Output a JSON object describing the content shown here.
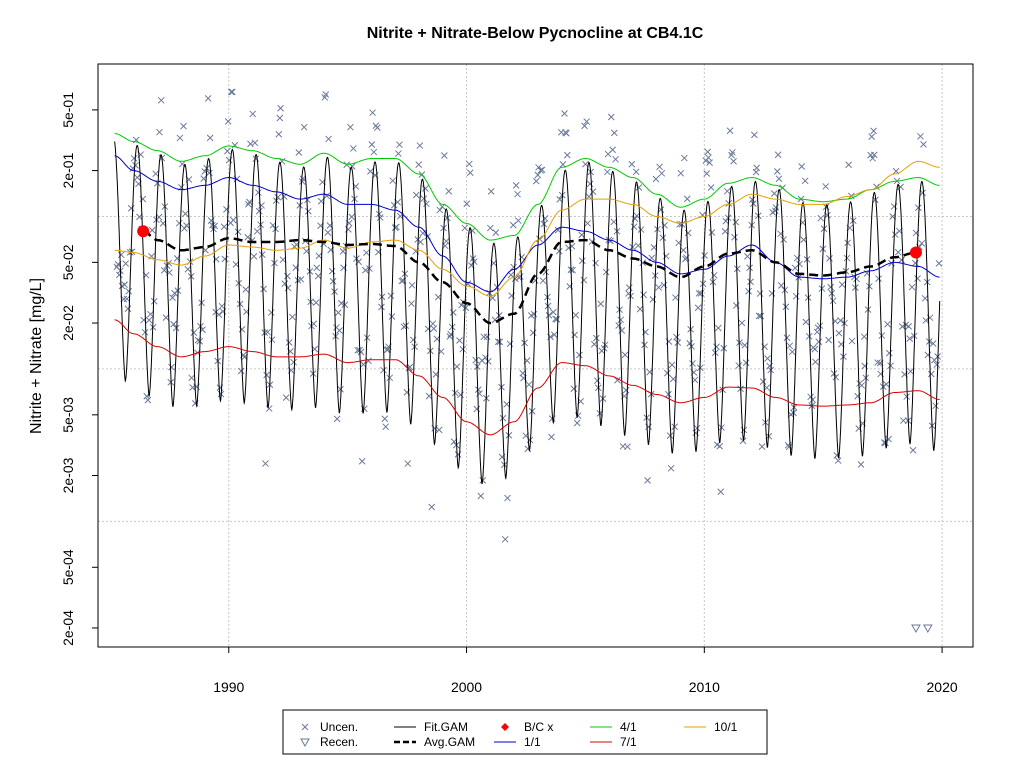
{
  "chart_data": {
    "type": "line",
    "title": "Nitrite + Nitrate-Below Pycnocline at CB4.1C",
    "xlabel": "",
    "ylabel": "Nitrite + Nitrate [mg/L]",
    "ylog": true,
    "xlim": [
      1984.5,
      2021.3
    ],
    "ylim": [
      0.00015,
      1.0
    ],
    "x_ticks": [
      1990,
      2000,
      2010,
      2020
    ],
    "x_tick_labels": [
      "1990",
      "2000",
      "2010",
      "2020"
    ],
    "y_ticks": [
      0.0002,
      0.0005,
      0.002,
      0.005,
      0.02,
      0.05,
      0.2,
      0.5
    ],
    "y_tick_labels": [
      "2e-04",
      "5e-04",
      "2e-03",
      "5e-03",
      "2e-02",
      "5e-02",
      "2e-01",
      "5e-01"
    ],
    "gridlines_y": [
      0.001,
      0.01,
      0.1
    ],
    "gridlines_x": [
      1990,
      2000,
      2010,
      2020
    ],
    "legend_position": "bottom",
    "colors": {
      "uncen": "#6a7a9a",
      "fit": "#000000",
      "avg": "#000000",
      "bc": "#ff0000",
      "d11": "#0000cc",
      "d41": "#00cc00",
      "d71": "#dd0000",
      "d101": "#e6a000"
    },
    "legend": [
      {
        "label": "Uncen.",
        "symbol": "x"
      },
      {
        "label": "Recen.",
        "symbol": "triangle"
      },
      {
        "label": "Fit.GAM",
        "symbol": "line"
      },
      {
        "label": "Avg.GAM",
        "symbol": "dashed"
      },
      {
        "label": "B/C x",
        "symbol": "dot"
      },
      {
        "label": "1/1",
        "symbol": "line"
      },
      {
        "label": "4/1",
        "symbol": "line"
      },
      {
        "label": "7/1",
        "symbol": "line"
      },
      {
        "label": "10/1",
        "symbol": "line"
      }
    ],
    "series": [
      {
        "name": "4/1",
        "color": "#00cc00",
        "x": [
          1985.2,
          1986,
          1987,
          1988,
          1989,
          1990,
          1991,
          1992,
          1993,
          1994,
          1995,
          1996,
          1997,
          1998,
          1999,
          2000,
          2001,
          2002,
          2003,
          2004,
          2005,
          2006,
          2007,
          2008,
          2009,
          2010,
          2011,
          2012,
          2013,
          2014,
          2015,
          2016,
          2017,
          2018,
          2019,
          2019.9
        ],
        "y": [
          0.35,
          0.31,
          0.27,
          0.23,
          0.25,
          0.29,
          0.27,
          0.24,
          0.22,
          0.26,
          0.22,
          0.24,
          0.24,
          0.19,
          0.12,
          0.09,
          0.07,
          0.075,
          0.12,
          0.21,
          0.24,
          0.21,
          0.18,
          0.14,
          0.115,
          0.13,
          0.165,
          0.18,
          0.16,
          0.13,
          0.125,
          0.13,
          0.15,
          0.17,
          0.18,
          0.16
        ]
      },
      {
        "name": "1/1",
        "color": "#0000cc",
        "x": [
          1985.2,
          1986,
          1987,
          1988,
          1989,
          1990,
          1991,
          1992,
          1993,
          1994,
          1995,
          1996,
          1997,
          1998,
          1999,
          2000,
          2001,
          2002,
          2003,
          2004,
          2005,
          2006,
          2007,
          2008,
          2009,
          2010,
          2011,
          2012,
          2013,
          2014,
          2015,
          2016,
          2017,
          2018,
          2019,
          2019.9
        ],
        "y": [
          0.25,
          0.2,
          0.17,
          0.15,
          0.16,
          0.18,
          0.16,
          0.145,
          0.13,
          0.14,
          0.12,
          0.12,
          0.11,
          0.085,
          0.055,
          0.037,
          0.032,
          0.045,
          0.065,
          0.085,
          0.08,
          0.07,
          0.06,
          0.05,
          0.042,
          0.045,
          0.055,
          0.065,
          0.05,
          0.04,
          0.039,
          0.04,
          0.044,
          0.05,
          0.047,
          0.04
        ]
      },
      {
        "name": "10/1",
        "color": "#e6a000",
        "x": [
          1985.2,
          1986,
          1987,
          1988,
          1989,
          1990,
          1991,
          1992,
          1993,
          1994,
          1995,
          1996,
          1997,
          1998,
          1999,
          2000,
          2001,
          2002,
          2003,
          2004,
          2005,
          2006,
          2007,
          2008,
          2009,
          2010,
          2011,
          2012,
          2013,
          2014,
          2015,
          2016,
          2017,
          2018,
          2019,
          2019.9
        ],
        "y": [
          0.06,
          0.058,
          0.052,
          0.048,
          0.055,
          0.065,
          0.063,
          0.06,
          0.062,
          0.07,
          0.062,
          0.068,
          0.07,
          0.06,
          0.045,
          0.035,
          0.03,
          0.04,
          0.07,
          0.11,
          0.13,
          0.13,
          0.12,
          0.1,
          0.09,
          0.1,
          0.12,
          0.14,
          0.13,
          0.12,
          0.12,
          0.135,
          0.15,
          0.19,
          0.23,
          0.21
        ]
      },
      {
        "name": "7/1",
        "color": "#dd0000",
        "x": [
          1985.2,
          1986,
          1987,
          1988,
          1989,
          1990,
          1991,
          1992,
          1993,
          1994,
          1995,
          1996,
          1997,
          1998,
          1999,
          2000,
          2001,
          2002,
          2003,
          2004,
          2005,
          2006,
          2007,
          2008,
          2009,
          2010,
          2011,
          2012,
          2013,
          2014,
          2015,
          2016,
          2017,
          2018,
          2019,
          2019.9
        ],
        "y": [
          0.021,
          0.017,
          0.014,
          0.012,
          0.013,
          0.014,
          0.013,
          0.012,
          0.012,
          0.0125,
          0.011,
          0.0115,
          0.0115,
          0.009,
          0.0065,
          0.0045,
          0.0037,
          0.0045,
          0.0075,
          0.011,
          0.0105,
          0.009,
          0.0078,
          0.0068,
          0.006,
          0.0065,
          0.0076,
          0.0075,
          0.0065,
          0.0058,
          0.0057,
          0.0058,
          0.006,
          0.007,
          0.0072,
          0.0063
        ]
      },
      {
        "name": "Avg.GAM",
        "color": "#000000",
        "dashed": true,
        "x": [
          1986.4,
          1987,
          1988,
          1989,
          1990,
          1991,
          1992,
          1993,
          1994,
          1995,
          1996,
          1997,
          1998,
          1999,
          2000,
          2001,
          2002,
          2003,
          2004,
          2005,
          2006,
          2007,
          2008,
          2009,
          2010,
          2011,
          2012,
          2013,
          2014,
          2015,
          2016,
          2017,
          2018,
          2018.9
        ],
        "y": [
          0.08,
          0.07,
          0.06,
          0.063,
          0.072,
          0.068,
          0.068,
          0.07,
          0.068,
          0.065,
          0.066,
          0.064,
          0.05,
          0.037,
          0.027,
          0.02,
          0.023,
          0.042,
          0.068,
          0.07,
          0.06,
          0.053,
          0.047,
          0.04,
          0.047,
          0.057,
          0.06,
          0.05,
          0.042,
          0.041,
          0.043,
          0.047,
          0.054,
          0.058
        ]
      },
      {
        "name": "Fit.GAM",
        "color": "#000000",
        "seasonal": true,
        "x_start": 1985.2,
        "x_end": 2019.9
      },
      {
        "name": "B/C x",
        "color": "#ff0000",
        "type": "points",
        "x": [
          1986.4,
          2018.9
        ],
        "y": [
          0.08,
          0.058
        ]
      },
      {
        "name": "Recen.",
        "type": "points",
        "x": [
          2018.9,
          2019.4
        ],
        "y": [
          0.0002,
          0.0002
        ]
      }
    ]
  }
}
